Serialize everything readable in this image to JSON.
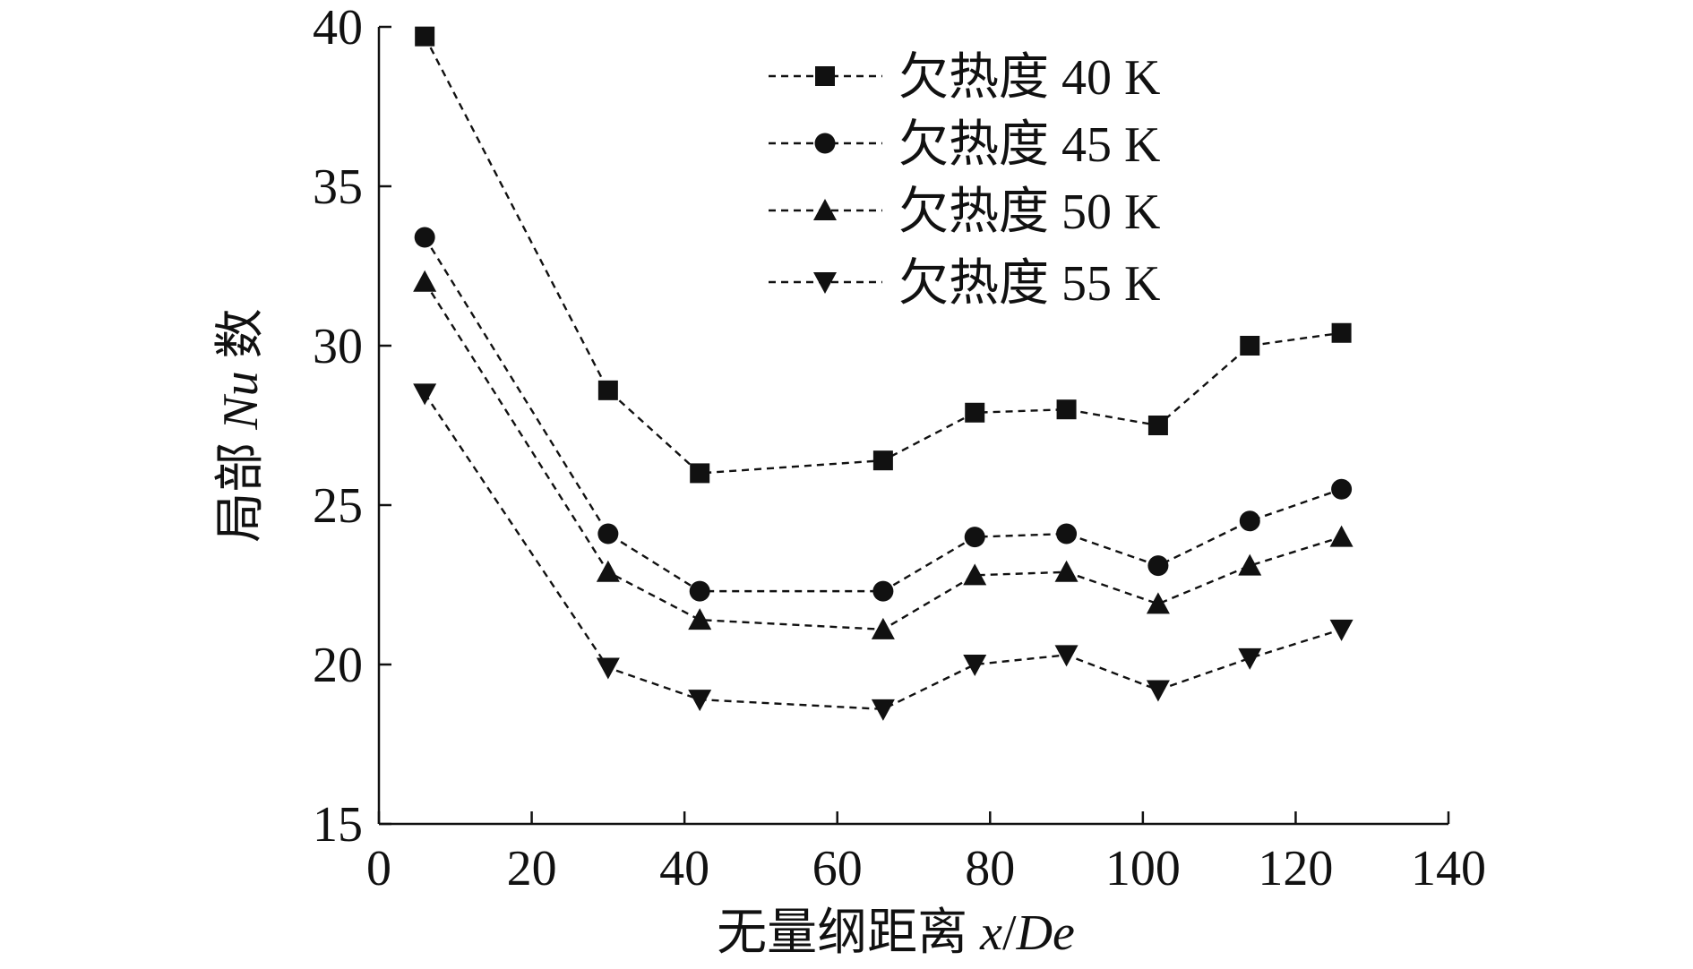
{
  "chart_data": {
    "type": "line",
    "title": "",
    "xlabel": "无量纲距离 x/De",
    "xlabel_parts": {
      "main": "无量纲距离 ",
      "italic_var": "x",
      "slash": "/",
      "italic_sub": "De"
    },
    "ylabel": "局部 Nu 数",
    "ylabel_parts": {
      "pre": "局部 ",
      "italic": "Nu",
      "post": " 数"
    },
    "xlim": [
      0,
      140
    ],
    "ylim": [
      15,
      40
    ],
    "xticks": [
      0,
      20,
      40,
      60,
      80,
      100,
      120,
      140
    ],
    "yticks": [
      15,
      20,
      25,
      30,
      35,
      40
    ],
    "xtick_labels": [
      "0",
      "20",
      "40",
      "60",
      "80",
      "100",
      "120",
      "140"
    ],
    "ytick_labels": [
      "15",
      "20",
      "25",
      "30",
      "35",
      "40"
    ],
    "grid": false,
    "legend_position": "top-right",
    "x": [
      6,
      30,
      42,
      66,
      78,
      90,
      102,
      114,
      126
    ],
    "series": [
      {
        "name": "欠热度 40 K",
        "marker": "square",
        "values": [
          39.7,
          28.6,
          26.0,
          26.4,
          27.9,
          28.0,
          27.5,
          30.0,
          30.4
        ]
      },
      {
        "name": "欠热度 45 K",
        "marker": "circle",
        "values": [
          33.4,
          24.1,
          22.3,
          22.3,
          24.0,
          24.1,
          23.1,
          24.5,
          25.5
        ]
      },
      {
        "name": "欠热度 50 K",
        "marker": "triangle-up",
        "values": [
          32.0,
          22.9,
          21.4,
          21.1,
          22.8,
          22.9,
          21.9,
          23.1,
          24.0
        ]
      },
      {
        "name": "欠热度 55 K",
        "marker": "triangle-down",
        "values": [
          28.5,
          19.9,
          18.9,
          18.6,
          20.0,
          20.3,
          19.2,
          20.2,
          21.1
        ]
      }
    ]
  }
}
